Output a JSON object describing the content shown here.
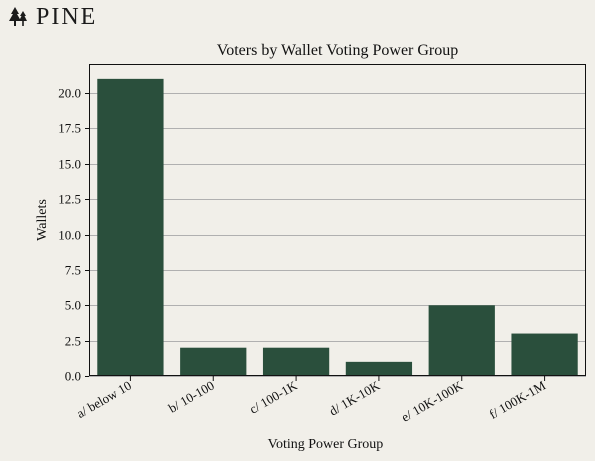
{
  "brand": {
    "name": "PINE",
    "logo_icon": "pine-trees-icon"
  },
  "colors": {
    "background": "#f1efe9",
    "bar": "#2a4f3c",
    "grid": "#b0b0b0",
    "axis": "#111111"
  },
  "chart_data": {
    "type": "bar",
    "title": "Voters by Wallet Voting Power Group",
    "xlabel": "Voting Power Group",
    "ylabel": "Wallets",
    "categories": [
      "a/ below 10",
      "b/ 10-100",
      "c/ 100-1K",
      "d/ 1K-10K",
      "e/ 10K-100K",
      "f/ 100K-1M"
    ],
    "values": [
      21,
      2,
      2,
      1,
      5,
      3
    ],
    "ylim": [
      0,
      22.05
    ],
    "yticks": [
      0.0,
      2.5,
      5.0,
      7.5,
      10.0,
      12.5,
      15.0,
      17.5,
      20.0
    ],
    "ytick_labels": [
      "0.0",
      "2.5",
      "5.0",
      "7.5",
      "10.0",
      "12.5",
      "15.0",
      "17.5",
      "20.0"
    ],
    "grid": "horizontal",
    "legend": "none"
  }
}
